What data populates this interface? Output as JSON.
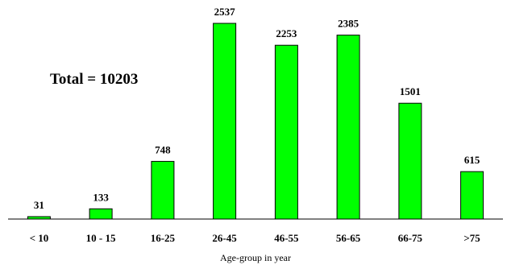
{
  "chart_data": {
    "type": "bar",
    "title": "",
    "xlabel": "Age-group in year",
    "ylabel": "",
    "annotation": "Total = 10203",
    "categories": [
      "< 10",
      "10 - 15",
      "16-25",
      "26-45",
      "46-55",
      "56-65",
      "66-75",
      ">75"
    ],
    "values": [
      31,
      133,
      748,
      2537,
      2253,
      2385,
      1501,
      615
    ],
    "data_labels": [
      "31",
      "133",
      "748",
      "2537",
      "2253",
      "2385",
      "1501",
      "615"
    ],
    "ylim": [
      0,
      2537
    ],
    "grid": false,
    "legend": "none",
    "colors": {
      "bar_fill": "#00ff00",
      "bar_stroke": "#000000",
      "axis": "#000000",
      "text": "#000000"
    }
  }
}
